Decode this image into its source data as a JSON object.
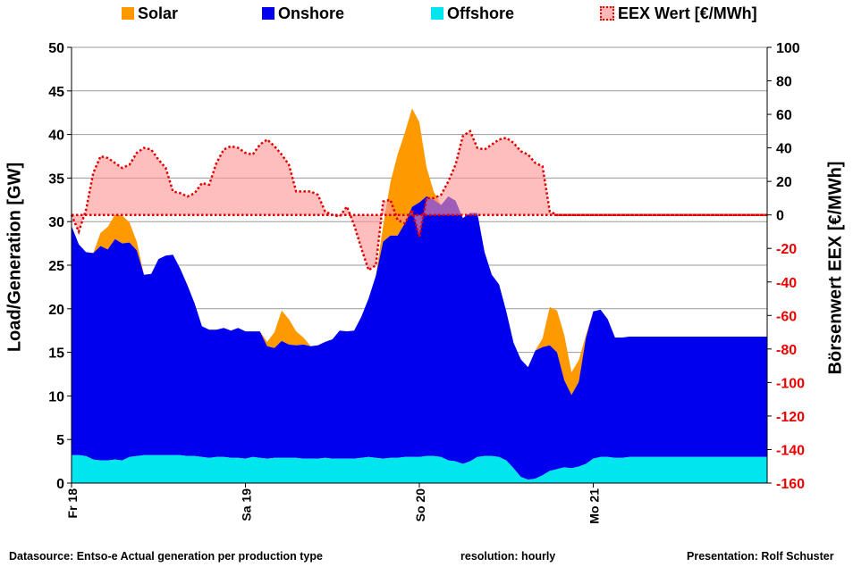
{
  "chart_data": {
    "type": "area",
    "legend": [
      {
        "label": "Solar",
        "color": "#ff9900"
      },
      {
        "label": "Onshore",
        "color": "#0000ee"
      },
      {
        "label": "Offshore",
        "color": "#00e5ee"
      },
      {
        "label": "EEX Wert [€/MWh]",
        "color": "#ee0000"
      }
    ],
    "ylabel_left": "Load/Generation  [GW]",
    "ylabel_right": "Börsenwert  EEX  [€/MWh]",
    "ylim_left": [
      0,
      50
    ],
    "ylim_right": [
      -160,
      100
    ],
    "yticks_left": [
      "0",
      "5",
      "10",
      "15",
      "20",
      "25",
      "30",
      "35",
      "40",
      "45",
      "50"
    ],
    "yticks_right": [
      "-160",
      "-140",
      "-120",
      "-100",
      "-80",
      "-60",
      "-40",
      "-20",
      "0",
      "20",
      "40",
      "60",
      "80",
      "100"
    ],
    "xlim": [
      0,
      96
    ],
    "xticks": [
      {
        "label": "Fr 18",
        "x": 0
      },
      {
        "label": "Sa 19",
        "x": 24
      },
      {
        "label": "So 20",
        "x": 48
      },
      {
        "label": "Mo 21",
        "x": 72
      }
    ],
    "x": [
      0,
      1,
      2,
      3,
      4,
      5,
      6,
      7,
      8,
      9,
      10,
      11,
      12,
      13,
      14,
      15,
      16,
      17,
      18,
      19,
      20,
      21,
      22,
      23,
      24,
      25,
      26,
      27,
      28,
      29,
      30,
      31,
      32,
      33,
      34,
      35,
      36,
      37,
      38,
      39,
      40,
      41,
      42,
      43,
      44,
      45,
      46,
      47,
      48,
      49,
      50,
      51,
      52,
      53,
      54,
      55,
      56,
      57,
      58,
      59,
      60,
      61,
      62,
      63,
      64,
      65,
      66,
      67,
      68,
      69,
      70,
      71,
      72,
      73,
      74,
      75,
      76,
      77,
      78,
      79,
      80,
      81,
      82,
      83,
      84,
      85,
      86,
      87,
      88,
      89,
      90,
      91,
      92,
      93,
      94,
      95,
      96
    ],
    "series": [
      {
        "name": "Offshore",
        "values": [
          3.2,
          3.2,
          3.1,
          2.7,
          2.6,
          2.6,
          2.7,
          2.6,
          3.0,
          3.1,
          3.2,
          3.2,
          3.2,
          3.2,
          3.2,
          3.2,
          3.1,
          3.1,
          3.0,
          2.9,
          3.0,
          3.0,
          2.9,
          2.9,
          2.8,
          3.0,
          2.9,
          2.8,
          2.9,
          2.9,
          2.9,
          2.9,
          2.8,
          2.8,
          2.8,
          2.9,
          2.8,
          2.8,
          2.8,
          2.8,
          2.9,
          3.0,
          2.9,
          2.8,
          2.9,
          2.9,
          3.0,
          3.0,
          3.0,
          3.1,
          3.1,
          3.0,
          2.6,
          2.5,
          2.2,
          2.5,
          3.0,
          3.1,
          3.1,
          3.0,
          2.6,
          1.7,
          0.7,
          0.4,
          0.5,
          0.9,
          1.4,
          1.6,
          1.8,
          1.7,
          1.9,
          2.2,
          2.8,
          3.0,
          3.0,
          2.9,
          2.9,
          3.0,
          3.0,
          3.0,
          3.0,
          3.0,
          3.0,
          3.0,
          3.0,
          3.0,
          3.0,
          3.0,
          3.0,
          3.0,
          3.0,
          3.0,
          3.0,
          3.0,
          3.0,
          3.0,
          3.0
        ]
      },
      {
        "name": "Onshore",
        "values": [
          26.3,
          24.2,
          23.4,
          23.7,
          24.6,
          24.2,
          25.3,
          24.9,
          24.6,
          23.6,
          20.7,
          20.8,
          22.5,
          22.9,
          23.0,
          21.4,
          19.6,
          17.5,
          15.0,
          14.7,
          14.6,
          14.8,
          14.6,
          14.9,
          14.6,
          14.4,
          14.5,
          12.9,
          12.6,
          13.4,
          13.0,
          12.9,
          13.1,
          12.9,
          13.0,
          13.3,
          13.7,
          14.7,
          14.6,
          14.7,
          16.2,
          18.2,
          20.9,
          24.9,
          25.5,
          25.5,
          26.8,
          28.7,
          29.2,
          29.8,
          29.4,
          28.9,
          30.3,
          29.9,
          28.2,
          28.5,
          28.0,
          23.4,
          20.8,
          19.8,
          17.1,
          14.4,
          13.5,
          12.9,
          14.7,
          14.7,
          14.4,
          13.4,
          10.0,
          8.4,
          9.7,
          14.5,
          16.9,
          16.9,
          15.8,
          13.8,
          13.8,
          13.8,
          13.8,
          13.8,
          13.8,
          13.8,
          13.8,
          13.8,
          13.8,
          13.8,
          13.8,
          13.8,
          13.8,
          13.8,
          13.8,
          13.8,
          13.8,
          13.8,
          13.8,
          13.8,
          13.8
        ]
      },
      {
        "name": "Solar",
        "values": [
          0,
          0,
          0,
          0,
          1.5,
          2.6,
          2.8,
          3.2,
          2.3,
          1.0,
          0,
          0,
          0,
          0,
          0,
          0,
          0,
          0,
          0,
          0,
          0,
          0,
          0,
          0,
          0,
          0,
          0,
          0.5,
          1.8,
          3.5,
          2.9,
          1.6,
          0.8,
          0,
          0,
          0,
          0,
          0,
          0,
          0,
          0,
          0,
          0,
          1.8,
          6.1,
          9.3,
          10.4,
          11.3,
          9.2,
          3.3,
          0.9,
          0,
          0,
          0,
          0,
          0,
          0,
          0,
          0,
          0,
          0,
          0,
          0,
          0,
          0,
          1.0,
          4.4,
          4.8,
          5.2,
          2.6,
          2.5,
          0.3,
          0,
          0,
          0,
          0,
          0,
          0,
          0,
          0,
          0,
          0,
          0,
          0,
          0,
          0,
          0,
          0,
          0,
          0,
          0,
          0,
          0,
          0,
          0,
          0,
          0
        ]
      },
      {
        "name": "EEX Wert [€/MWh]",
        "values": [
          0,
          -10,
          3,
          25,
          35,
          34,
          31,
          28,
          30,
          37,
          40,
          39,
          33,
          28,
          14,
          13,
          11,
          13,
          19,
          18,
          31,
          39,
          41,
          40,
          37,
          36,
          42,
          45,
          41,
          36,
          30,
          14,
          14,
          14,
          12,
          2,
          0,
          -1,
          5,
          -6,
          -20,
          -33,
          -30,
          8,
          9,
          -3,
          -5,
          3,
          -13,
          10,
          10,
          12,
          20,
          30,
          47,
          50,
          40,
          39,
          42,
          45,
          46,
          43,
          38,
          36,
          31,
          29,
          2,
          0,
          0,
          0,
          0,
          0,
          0,
          0,
          0,
          0,
          0,
          0,
          0,
          0,
          0,
          0,
          0,
          0,
          0,
          0,
          0,
          0,
          0,
          0,
          0,
          0,
          0,
          0,
          0,
          0,
          0
        ]
      }
    ]
  },
  "footer": {
    "datasource": "Datasource: Entso-e  Actual generation per production type",
    "resolution": "resolution: hourly",
    "presentation": "Presentation:  Rolf Schuster"
  }
}
